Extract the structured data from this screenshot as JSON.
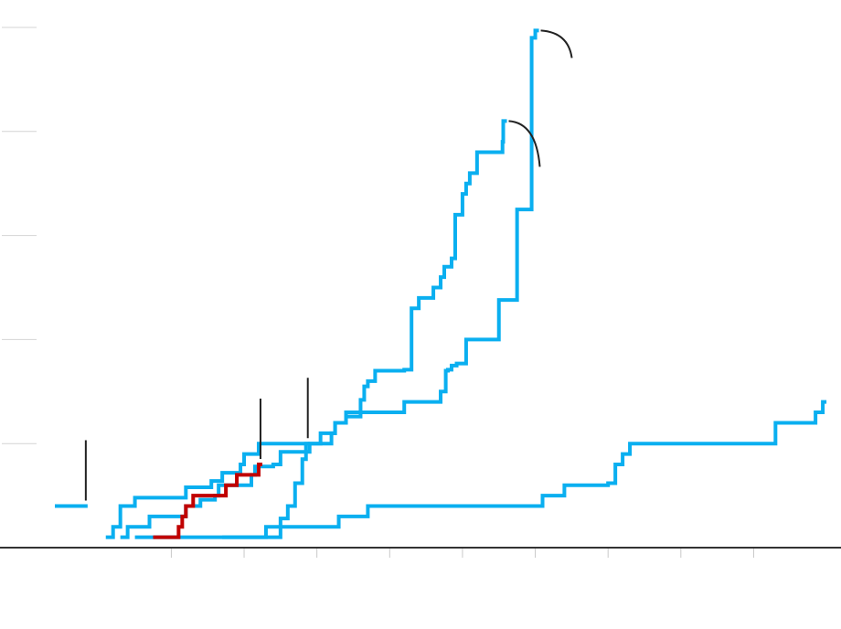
{
  "chart_data": {
    "type": "line",
    "step": true,
    "title": "",
    "xlabel": "",
    "ylabel": "",
    "xlim": [
      -8,
      100
    ],
    "ylim": [
      0,
      5
    ],
    "y_gridlines": [
      1,
      2,
      3,
      4,
      5
    ],
    "x_ticks": [
      8,
      18,
      28,
      38,
      48,
      58,
      68,
      78,
      88
    ],
    "grid": true,
    "legend": "none",
    "colors": {
      "highlight": "#c00000",
      "other": "#0aaff0",
      "annotation": "#222222",
      "axis": "#333333",
      "grid": "#d4d4d4"
    },
    "series": [
      {
        "color": "#0aaff0",
        "x": [
          -1,
          0,
          1,
          1.5,
          3,
          7,
          9,
          10,
          11,
          13,
          13.5,
          15,
          17,
          17.5,
          18,
          18.5,
          20,
          23,
          30,
          30.5,
          32,
          37,
          40,
          45,
          45.7,
          46,
          46.5,
          47.2,
          48.5,
          53,
          55.5,
          57.5,
          58
        ],
        "y": [
          0.1,
          0.2,
          0.4,
          0.4,
          0.48,
          0.48,
          0.48,
          0.58,
          0.58,
          0.58,
          0.64,
          0.72,
          0.72,
          0.8,
          0.9,
          0.9,
          1.0,
          1.0,
          1.1,
          1.2,
          1.3,
          1.3,
          1.4,
          1.5,
          1.7,
          1.71,
          1.75,
          1.77,
          2.0,
          2.38,
          3.25,
          4.9,
          4.97
        ],
        "end_annotation": "curve"
      },
      {
        "color": "#0aaff0",
        "x": [
          1,
          2,
          4,
          5,
          9,
          10,
          12,
          13,
          14,
          14.5,
          19,
          19.5,
          22,
          23,
          27,
          27.2,
          28.5,
          30.5,
          32,
          34,
          34.5,
          35,
          36,
          40,
          41,
          42,
          44,
          45,
          45.5,
          46.5,
          47,
          48,
          48.5,
          49,
          50,
          53,
          53.5,
          53.6
        ],
        "y": [
          0.1,
          0.2,
          0.2,
          0.3,
          0.3,
          0.4,
          0.46,
          0.46,
          0.5,
          0.6,
          0.7,
          0.78,
          0.8,
          0.92,
          1.0,
          1.0,
          1.1,
          1.2,
          1.26,
          1.42,
          1.55,
          1.6,
          1.7,
          1.71,
          2.3,
          2.4,
          2.5,
          2.6,
          2.7,
          2.78,
          3.2,
          3.4,
          3.5,
          3.6,
          3.8,
          3.8,
          3.9,
          4.1
        ],
        "end_annotation": "curve"
      },
      {
        "color": "#0aaff0",
        "x": [
          3,
          18,
          21,
          23,
          24,
          25,
          26,
          26.5
        ],
        "y": [
          0.1,
          0.1,
          0.1,
          0.28,
          0.4,
          0.62,
          0.85,
          1.0
        ],
        "end_annotation": "tick"
      },
      {
        "color": "#0aaff0",
        "x": [
          15,
          18,
          21,
          31,
          35,
          59,
          62,
          68,
          69,
          70,
          71,
          91,
          96.5,
          97.5
        ],
        "y": [
          0.1,
          0.1,
          0.2,
          0.3,
          0.4,
          0.5,
          0.6,
          0.62,
          0.8,
          0.9,
          1.0,
          1.2,
          1.3,
          1.4
        ],
        "end_annotation": "none"
      },
      {
        "color": "#c00000",
        "x": [
          5.5,
          7.5,
          9,
          9.5,
          10,
          10.2,
          11,
          14.5,
          15.5,
          17,
          19,
          20
        ],
        "y": [
          0.1,
          0.1,
          0.2,
          0.3,
          0.4,
          0.4,
          0.5,
          0.5,
          0.6,
          0.7,
          0.7,
          0.8
        ],
        "end_annotation": "tick"
      },
      {
        "color": "#0aaff0",
        "x": [
          -8,
          -6,
          -4
        ],
        "y": [
          0.4,
          0.4,
          0.4
        ],
        "end_annotation": "tick"
      }
    ]
  }
}
